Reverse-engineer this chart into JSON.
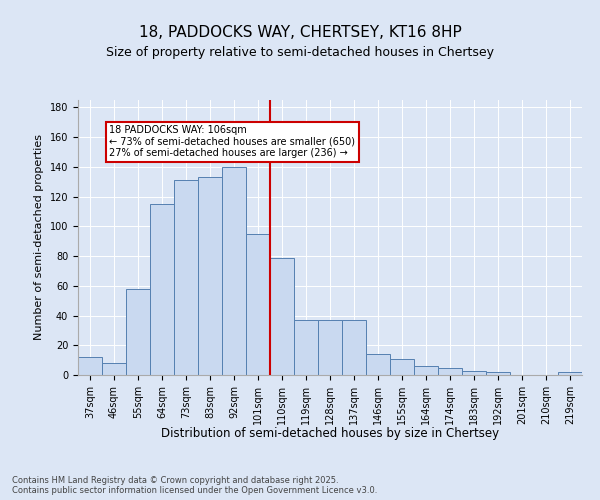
{
  "title1": "18, PADDOCKS WAY, CHERTSEY, KT16 8HP",
  "title2": "Size of property relative to semi-detached houses in Chertsey",
  "xlabel": "Distribution of semi-detached houses by size in Chertsey",
  "ylabel": "Number of semi-detached properties",
  "categories": [
    "37sqm",
    "46sqm",
    "55sqm",
    "64sqm",
    "73sqm",
    "83sqm",
    "92sqm",
    "101sqm",
    "110sqm",
    "119sqm",
    "128sqm",
    "137sqm",
    "146sqm",
    "155sqm",
    "164sqm",
    "174sqm",
    "183sqm",
    "192sqm",
    "201sqm",
    "210sqm",
    "219sqm"
  ],
  "values": [
    12,
    8,
    58,
    115,
    131,
    133,
    140,
    95,
    79,
    37,
    37,
    37,
    14,
    11,
    6,
    5,
    3,
    2,
    0,
    0,
    2
  ],
  "bar_color": "#c9d9f0",
  "bar_edge_color": "#5580b0",
  "vline_x_index": 7,
  "vline_color": "#cc0000",
  "annotation_text": "18 PADDOCKS WAY: 106sqm\n← 73% of semi-detached houses are smaller (650)\n27% of semi-detached houses are larger (236) →",
  "annotation_box_color": "#cc0000",
  "ylim": [
    0,
    185
  ],
  "yticks": [
    0,
    20,
    40,
    60,
    80,
    100,
    120,
    140,
    160,
    180
  ],
  "bg_color": "#dce6f5",
  "title1_fontsize": 11,
  "title2_fontsize": 9,
  "xlabel_fontsize": 8.5,
  "ylabel_fontsize": 8,
  "tick_fontsize": 7,
  "annotation_fontsize": 7,
  "footer_fontsize": 6,
  "footer_text": "Contains HM Land Registry data © Crown copyright and database right 2025.\nContains public sector information licensed under the Open Government Licence v3.0."
}
